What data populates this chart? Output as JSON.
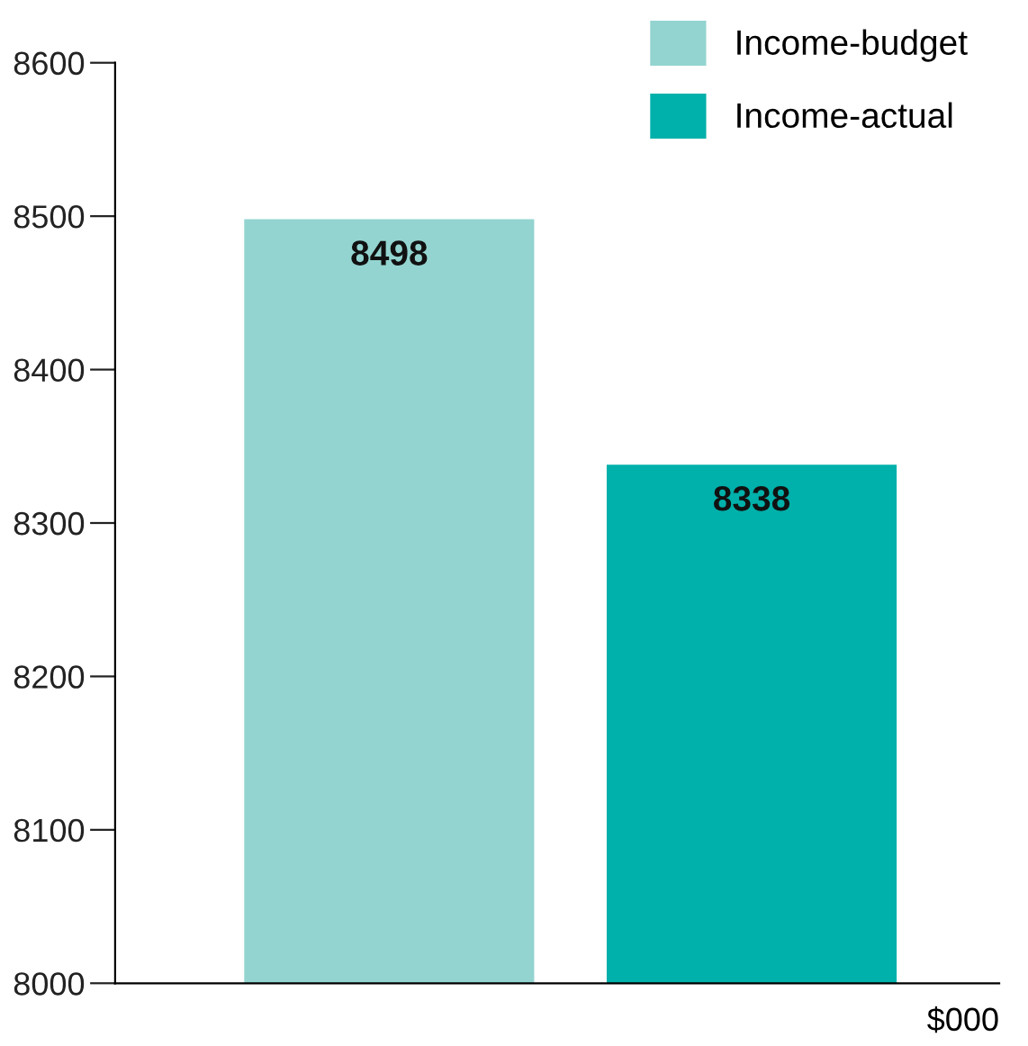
{
  "chart_data": {
    "type": "bar",
    "categories": [
      null
    ],
    "series": [
      {
        "name": "Income-budget",
        "color": "#93d4d0",
        "values": [
          8498
        ]
      },
      {
        "name": "Income-actual",
        "color": "#00b0aa",
        "values": [
          8338
        ]
      }
    ],
    "xlabel": "$000",
    "ylim": [
      8000,
      8600
    ],
    "yticks": [
      8000,
      8100,
      8200,
      8300,
      8400,
      8500,
      8600
    ],
    "data_labels": true,
    "legend": "top right",
    "grid": false
  }
}
